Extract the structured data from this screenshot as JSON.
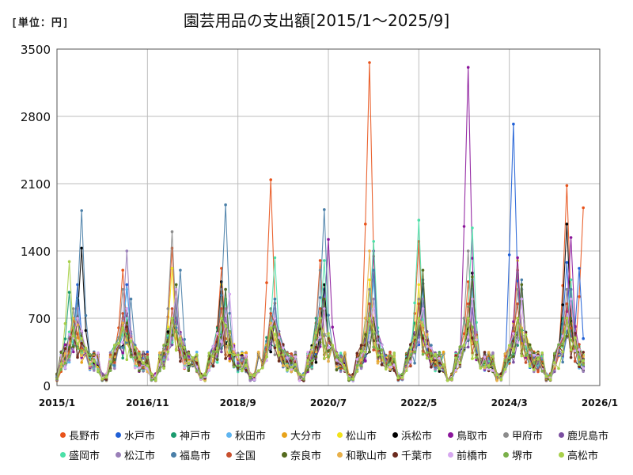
{
  "unit_label": "[単位：円]",
  "chart_data": {
    "type": "line",
    "title": "園芸用品の支出額[2015/1～2025/9]",
    "xlabel": "",
    "ylabel": "円",
    "ylim": [
      0,
      3500
    ],
    "yticks": [
      0,
      700,
      1400,
      2100,
      2800,
      3500
    ],
    "x_start": "2015/1",
    "x_end": "2026/1",
    "xticks": [
      "2015/1",
      "2016/11",
      "2018/9",
      "2020/7",
      "2022/5",
      "2024/3",
      "2026/1"
    ],
    "grid": true,
    "legend_position": "bottom",
    "n_points": 129,
    "series": [
      {
        "name": "長野市",
        "color": "#E8531B",
        "peaks": [
          {
            "x": 4,
            "y": 700
          },
          {
            "x": 16,
            "y": 1200
          },
          {
            "x": 28,
            "y": 1430
          },
          {
            "x": 40,
            "y": 1220
          },
          {
            "x": 52,
            "y": 2140
          },
          {
            "x": 64,
            "y": 1300
          },
          {
            "x": 76,
            "y": 3360
          },
          {
            "x": 88,
            "y": 1500
          },
          {
            "x": 100,
            "y": 1080
          },
          {
            "x": 112,
            "y": 1200
          },
          {
            "x": 124,
            "y": 2080
          },
          {
            "x": 128,
            "y": 1850
          }
        ]
      },
      {
        "name": "水戸市",
        "color": "#1F5FD6",
        "peaks": [
          {
            "x": 5,
            "y": 1050
          },
          {
            "x": 17,
            "y": 1050
          },
          {
            "x": 29,
            "y": 850
          },
          {
            "x": 41,
            "y": 900
          },
          {
            "x": 53,
            "y": 700
          },
          {
            "x": 65,
            "y": 1000
          },
          {
            "x": 77,
            "y": 1200
          },
          {
            "x": 89,
            "y": 850
          },
          {
            "x": 101,
            "y": 900
          },
          {
            "x": 111,
            "y": 2720
          },
          {
            "x": 124,
            "y": 1280
          },
          {
            "x": 127,
            "y": 1220
          }
        ]
      },
      {
        "name": "神戸市",
        "color": "#1A9B6E",
        "peaks": [
          {
            "x": 3,
            "y": 970
          },
          {
            "x": 15,
            "y": 500
          },
          {
            "x": 27,
            "y": 600
          },
          {
            "x": 39,
            "y": 600
          },
          {
            "x": 51,
            "y": 500
          },
          {
            "x": 63,
            "y": 700
          },
          {
            "x": 75,
            "y": 700
          },
          {
            "x": 87,
            "y": 650
          },
          {
            "x": 99,
            "y": 700
          },
          {
            "x": 111,
            "y": 600
          },
          {
            "x": 123,
            "y": 700
          }
        ]
      },
      {
        "name": "秋田市",
        "color": "#5FB5F0",
        "peaks": [
          {
            "x": 5,
            "y": 900
          },
          {
            "x": 17,
            "y": 1000
          },
          {
            "x": 29,
            "y": 1050
          },
          {
            "x": 41,
            "y": 1000
          },
          {
            "x": 53,
            "y": 900
          },
          {
            "x": 65,
            "y": 1000
          },
          {
            "x": 77,
            "y": 1100
          },
          {
            "x": 89,
            "y": 1000
          },
          {
            "x": 101,
            "y": 1000
          },
          {
            "x": 113,
            "y": 1000
          },
          {
            "x": 125,
            "y": 1000
          }
        ]
      },
      {
        "name": "大分市",
        "color": "#E8A31B",
        "peaks": [
          {
            "x": 4,
            "y": 700
          },
          {
            "x": 16,
            "y": 650
          },
          {
            "x": 28,
            "y": 700
          },
          {
            "x": 40,
            "y": 900
          },
          {
            "x": 52,
            "y": 650
          },
          {
            "x": 64,
            "y": 700
          },
          {
            "x": 76,
            "y": 750
          },
          {
            "x": 88,
            "y": 700
          },
          {
            "x": 100,
            "y": 700
          },
          {
            "x": 112,
            "y": 700
          },
          {
            "x": 124,
            "y": 650
          }
        ]
      },
      {
        "name": "松山市",
        "color": "#F2E21A",
        "peaks": [
          {
            "x": 4,
            "y": 600
          },
          {
            "x": 16,
            "y": 600
          },
          {
            "x": 28,
            "y": 1220
          },
          {
            "x": 40,
            "y": 1050
          },
          {
            "x": 52,
            "y": 600
          },
          {
            "x": 64,
            "y": 700
          },
          {
            "x": 76,
            "y": 1100
          },
          {
            "x": 88,
            "y": 1050
          },
          {
            "x": 100,
            "y": 700
          },
          {
            "x": 112,
            "y": 1300
          },
          {
            "x": 124,
            "y": 700
          }
        ]
      },
      {
        "name": "浜松市",
        "color": "#000000",
        "peaks": [
          {
            "x": 6,
            "y": 1430
          },
          {
            "x": 17,
            "y": 750
          },
          {
            "x": 29,
            "y": 900
          },
          {
            "x": 40,
            "y": 1080
          },
          {
            "x": 53,
            "y": 700
          },
          {
            "x": 65,
            "y": 1050
          },
          {
            "x": 77,
            "y": 700
          },
          {
            "x": 89,
            "y": 1060
          },
          {
            "x": 101,
            "y": 1170
          },
          {
            "x": 113,
            "y": 1000
          },
          {
            "x": 124,
            "y": 1680
          }
        ]
      },
      {
        "name": "鳥取市",
        "color": "#8B169B",
        "peaks": [
          {
            "x": 5,
            "y": 700
          },
          {
            "x": 17,
            "y": 650
          },
          {
            "x": 29,
            "y": 700
          },
          {
            "x": 41,
            "y": 700
          },
          {
            "x": 53,
            "y": 700
          },
          {
            "x": 66,
            "y": 1520
          },
          {
            "x": 77,
            "y": 1400
          },
          {
            "x": 88,
            "y": 700
          },
          {
            "x": 100,
            "y": 3310
          },
          {
            "x": 112,
            "y": 1330
          },
          {
            "x": 125,
            "y": 1540
          }
        ]
      },
      {
        "name": "甲府市",
        "color": "#8C8C8C",
        "peaks": [
          {
            "x": 4,
            "y": 800
          },
          {
            "x": 16,
            "y": 1000
          },
          {
            "x": 28,
            "y": 1600
          },
          {
            "x": 40,
            "y": 1000
          },
          {
            "x": 52,
            "y": 800
          },
          {
            "x": 64,
            "y": 1200
          },
          {
            "x": 76,
            "y": 1000
          },
          {
            "x": 88,
            "y": 900
          },
          {
            "x": 100,
            "y": 1400
          },
          {
            "x": 112,
            "y": 1000
          },
          {
            "x": 124,
            "y": 1000
          }
        ]
      },
      {
        "name": "鹿児島市",
        "color": "#7A4EA0",
        "peaks": [
          {
            "x": 5,
            "y": 700
          },
          {
            "x": 17,
            "y": 800
          },
          {
            "x": 29,
            "y": 850
          },
          {
            "x": 41,
            "y": 700
          },
          {
            "x": 53,
            "y": 700
          },
          {
            "x": 65,
            "y": 800
          },
          {
            "x": 77,
            "y": 700
          },
          {
            "x": 89,
            "y": 800
          },
          {
            "x": 101,
            "y": 800
          },
          {
            "x": 113,
            "y": 900
          },
          {
            "x": 125,
            "y": 900
          }
        ]
      },
      {
        "name": "盛岡市",
        "color": "#4CE0A8",
        "peaks": [
          {
            "x": 5,
            "y": 800
          },
          {
            "x": 17,
            "y": 700
          },
          {
            "x": 29,
            "y": 900
          },
          {
            "x": 41,
            "y": 900
          },
          {
            "x": 53,
            "y": 1330
          },
          {
            "x": 65,
            "y": 1300
          },
          {
            "x": 77,
            "y": 1500
          },
          {
            "x": 88,
            "y": 1720
          },
          {
            "x": 101,
            "y": 1640
          },
          {
            "x": 113,
            "y": 1000
          },
          {
            "x": 125,
            "y": 1100
          }
        ]
      },
      {
        "name": "松江市",
        "color": "#9A7FB8",
        "peaks": [
          {
            "x": 5,
            "y": 800
          },
          {
            "x": 17,
            "y": 1400
          },
          {
            "x": 29,
            "y": 900
          },
          {
            "x": 41,
            "y": 800
          },
          {
            "x": 53,
            "y": 800
          },
          {
            "x": 65,
            "y": 900
          },
          {
            "x": 77,
            "y": 900
          },
          {
            "x": 89,
            "y": 900
          },
          {
            "x": 101,
            "y": 900
          },
          {
            "x": 113,
            "y": 1000
          },
          {
            "x": 125,
            "y": 1000
          }
        ]
      },
      {
        "name": "福島市",
        "color": "#4A7FA8",
        "peaks": [
          {
            "x": 6,
            "y": 1820
          },
          {
            "x": 18,
            "y": 900
          },
          {
            "x": 30,
            "y": 1200
          },
          {
            "x": 41,
            "y": 1880
          },
          {
            "x": 53,
            "y": 900
          },
          {
            "x": 65,
            "y": 1830
          },
          {
            "x": 77,
            "y": 1200
          },
          {
            "x": 89,
            "y": 1100
          },
          {
            "x": 101,
            "y": 1100
          },
          {
            "x": 113,
            "y": 1100
          },
          {
            "x": 125,
            "y": 1000
          }
        ]
      },
      {
        "name": "全国",
        "color": "#C8502E",
        "peaks": [
          {
            "x": 4,
            "y": 700
          },
          {
            "x": 16,
            "y": 750
          },
          {
            "x": 28,
            "y": 800
          },
          {
            "x": 40,
            "y": 800
          },
          {
            "x": 52,
            "y": 750
          },
          {
            "x": 64,
            "y": 800
          },
          {
            "x": 76,
            "y": 850
          },
          {
            "x": 88,
            "y": 850
          },
          {
            "x": 100,
            "y": 850
          },
          {
            "x": 112,
            "y": 850
          },
          {
            "x": 124,
            "y": 850
          }
        ]
      },
      {
        "name": "奈良市",
        "color": "#556B1E",
        "peaks": [
          {
            "x": 5,
            "y": 700
          },
          {
            "x": 17,
            "y": 650
          },
          {
            "x": 29,
            "y": 1050
          },
          {
            "x": 41,
            "y": 1000
          },
          {
            "x": 53,
            "y": 700
          },
          {
            "x": 65,
            "y": 900
          },
          {
            "x": 77,
            "y": 700
          },
          {
            "x": 89,
            "y": 1200
          },
          {
            "x": 101,
            "y": 1130
          },
          {
            "x": 113,
            "y": 1050
          },
          {
            "x": 125,
            "y": 700
          }
        ]
      },
      {
        "name": "和歌山市",
        "color": "#E8B04A",
        "peaks": [
          {
            "x": 4,
            "y": 700
          },
          {
            "x": 16,
            "y": 650
          },
          {
            "x": 28,
            "y": 700
          },
          {
            "x": 40,
            "y": 700
          },
          {
            "x": 52,
            "y": 650
          },
          {
            "x": 64,
            "y": 700
          },
          {
            "x": 76,
            "y": 1400
          },
          {
            "x": 88,
            "y": 700
          },
          {
            "x": 100,
            "y": 700
          },
          {
            "x": 112,
            "y": 700
          },
          {
            "x": 124,
            "y": 700
          }
        ]
      },
      {
        "name": "千葉市",
        "color": "#6B2A1E",
        "peaks": [
          {
            "x": 4,
            "y": 600
          },
          {
            "x": 16,
            "y": 600
          },
          {
            "x": 28,
            "y": 650
          },
          {
            "x": 40,
            "y": 700
          },
          {
            "x": 52,
            "y": 600
          },
          {
            "x": 64,
            "y": 700
          },
          {
            "x": 76,
            "y": 650
          },
          {
            "x": 88,
            "y": 650
          },
          {
            "x": 100,
            "y": 700
          },
          {
            "x": 112,
            "y": 700
          },
          {
            "x": 124,
            "y": 700
          }
        ]
      },
      {
        "name": "前橋市",
        "color": "#D7A8F0",
        "peaks": [
          {
            "x": 5,
            "y": 700
          },
          {
            "x": 17,
            "y": 800
          },
          {
            "x": 29,
            "y": 1000
          },
          {
            "x": 42,
            "y": 950
          },
          {
            "x": 53,
            "y": 700
          },
          {
            "x": 65,
            "y": 800
          },
          {
            "x": 77,
            "y": 800
          },
          {
            "x": 89,
            "y": 800
          },
          {
            "x": 101,
            "y": 900
          },
          {
            "x": 113,
            "y": 900
          },
          {
            "x": 125,
            "y": 900
          }
        ]
      },
      {
        "name": "堺市",
        "color": "#7AB04A",
        "peaks": [
          {
            "x": 4,
            "y": 600
          },
          {
            "x": 16,
            "y": 600
          },
          {
            "x": 28,
            "y": 700
          },
          {
            "x": 40,
            "y": 700
          },
          {
            "x": 52,
            "y": 600
          },
          {
            "x": 64,
            "y": 700
          },
          {
            "x": 76,
            "y": 700
          },
          {
            "x": 88,
            "y": 700
          },
          {
            "x": 100,
            "y": 700
          },
          {
            "x": 112,
            "y": 700
          },
          {
            "x": 124,
            "y": 700
          }
        ]
      },
      {
        "name": "高松市",
        "color": "#A8D04A",
        "peaks": [
          {
            "x": 3,
            "y": 1290
          },
          {
            "x": 16,
            "y": 600
          },
          {
            "x": 28,
            "y": 700
          },
          {
            "x": 40,
            "y": 700
          },
          {
            "x": 52,
            "y": 600
          },
          {
            "x": 64,
            "y": 700
          },
          {
            "x": 76,
            "y": 700
          },
          {
            "x": 88,
            "y": 700
          },
          {
            "x": 100,
            "y": 700
          },
          {
            "x": 112,
            "y": 700
          },
          {
            "x": 124,
            "y": 700
          }
        ]
      }
    ]
  }
}
